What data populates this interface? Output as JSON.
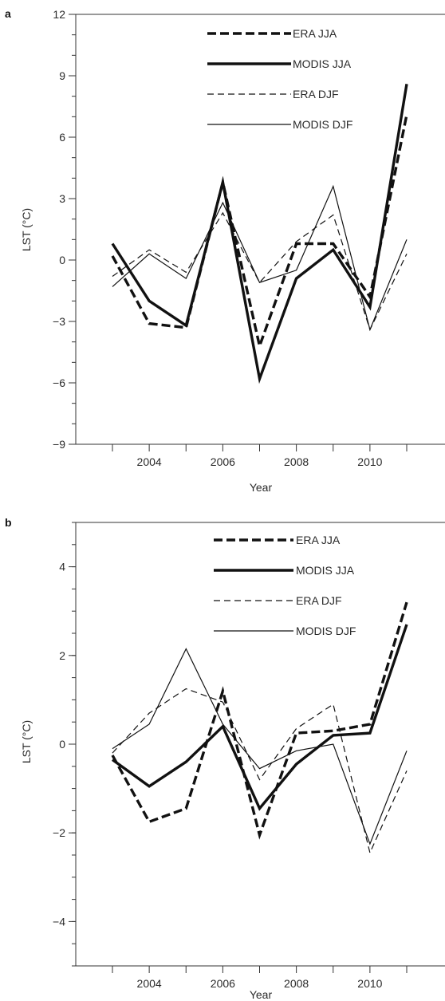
{
  "chart_data": [
    {
      "panel": "a",
      "type": "line",
      "xlabel": "Year",
      "ylabel": "LST (°C)",
      "ylim": [
        -9,
        12
      ],
      "yticks": [
        -9,
        -6,
        -3,
        0,
        3,
        6,
        9,
        12
      ],
      "xlim": [
        2002.5,
        2011.5
      ],
      "xticks": [
        2004,
        2006,
        2008,
        2010
      ],
      "x": [
        2003,
        2004,
        2005,
        2006,
        2007,
        2008,
        2009,
        2010,
        2011
      ],
      "legend_position": "top-right",
      "series": [
        {
          "name": "ERA JJA",
          "style": "thick-dashed",
          "values": [
            0.2,
            -3.1,
            -3.3,
            3.8,
            -4.2,
            0.8,
            0.8,
            -1.8,
            7.1
          ]
        },
        {
          "name": "MODIS JJA",
          "style": "thick-solid",
          "values": [
            0.8,
            -2.0,
            -3.2,
            3.8,
            -5.8,
            -0.9,
            0.5,
            -2.3,
            8.6
          ]
        },
        {
          "name": "ERA DJF",
          "style": "thin-dashed",
          "values": [
            -0.8,
            0.5,
            -0.6,
            2.3,
            -1.1,
            0.9,
            2.2,
            -3.4,
            0.3
          ]
        },
        {
          "name": "MODIS DJF",
          "style": "thin-solid",
          "values": [
            -1.3,
            0.3,
            -0.9,
            2.8,
            -1.1,
            -0.5,
            3.6,
            -3.4,
            1.0
          ]
        }
      ]
    },
    {
      "panel": "b",
      "type": "line",
      "xlabel": "Year",
      "ylabel": "LST (°C)",
      "ylim": [
        -5,
        5
      ],
      "yticks": [
        -4,
        -2,
        0,
        2,
        4
      ],
      "xlim": [
        2002.5,
        2011.5
      ],
      "xticks": [
        2004,
        2006,
        2008,
        2010
      ],
      "x": [
        2003,
        2004,
        2005,
        2006,
        2007,
        2008,
        2009,
        2010,
        2011
      ],
      "legend_position": "top-right",
      "series": [
        {
          "name": "ERA JJA",
          "style": "thick-dashed",
          "values": [
            -0.25,
            -1.75,
            -1.45,
            1.2,
            -2.05,
            0.25,
            0.3,
            0.45,
            3.2
          ]
        },
        {
          "name": "MODIS JJA",
          "style": "thick-solid",
          "values": [
            -0.35,
            -0.95,
            -0.4,
            0.4,
            -1.45,
            -0.45,
            0.2,
            0.25,
            2.7
          ]
        },
        {
          "name": "ERA DJF",
          "style": "thin-dashed",
          "values": [
            -0.2,
            0.7,
            1.25,
            0.95,
            -0.8,
            0.35,
            0.9,
            -2.45,
            -0.6
          ]
        },
        {
          "name": "MODIS DJF",
          "style": "thin-solid",
          "values": [
            -0.1,
            0.45,
            2.15,
            0.45,
            -0.55,
            -0.15,
            0.0,
            -2.25,
            -0.15
          ]
        }
      ]
    }
  ]
}
